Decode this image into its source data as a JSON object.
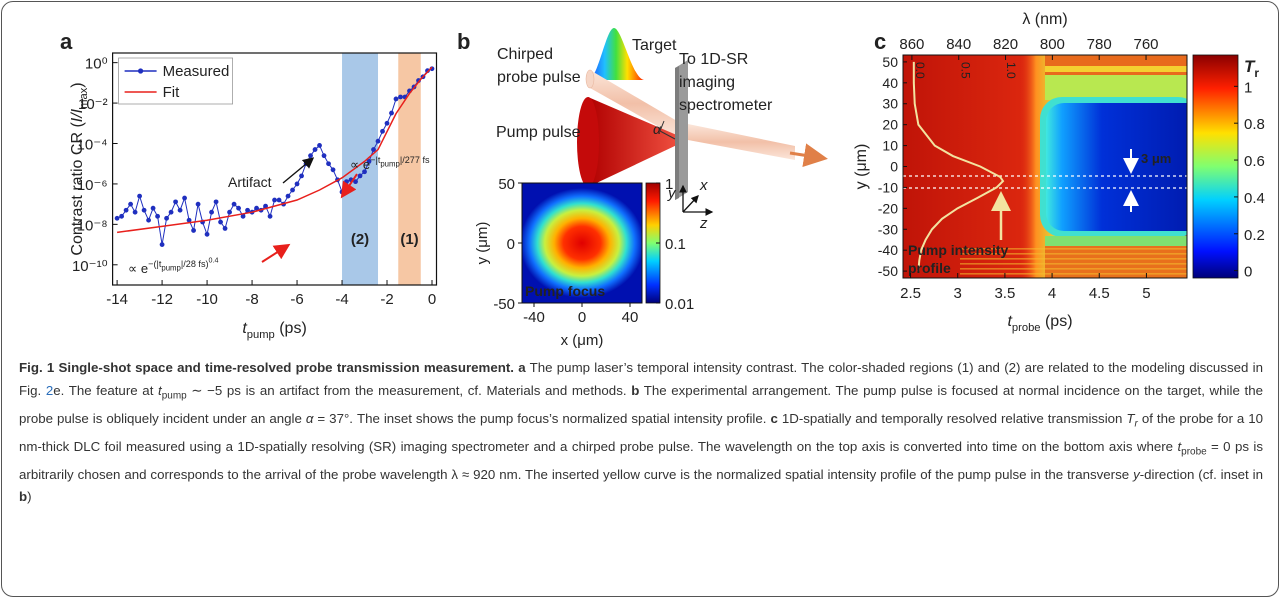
{
  "chart_data": [
    {
      "type": "line",
      "label": "a",
      "xlabel": [
        {
          "text": "t",
          "style": "i"
        },
        {
          "text": "pump",
          "style": "sub"
        },
        {
          "text": " (ps)"
        }
      ],
      "ylabel": [
        {
          "text": "Contrast ratio CR ("
        },
        {
          "text": "I/I",
          "style": "i"
        },
        {
          "text": "max",
          "style": "sub"
        },
        {
          "text": ")"
        }
      ],
      "xlim": [
        -14.2,
        0.2
      ],
      "xticks": [
        -14,
        -12,
        -10,
        -8,
        -6,
        -4,
        -2,
        0
      ],
      "ylim": [
        1e-11,
        3
      ],
      "yscale": "log",
      "yticks": [
        {
          "value": 1,
          "label": "10⁰"
        },
        {
          "value": 0.01,
          "label": "10⁻²"
        },
        {
          "value": 0.0001,
          "label": "10⁻⁴"
        },
        {
          "value": 1e-06,
          "label": "10⁻⁶"
        },
        {
          "value": 1e-08,
          "label": "10⁻⁸"
        },
        {
          "value": 1e-10,
          "label": "10⁻¹⁰"
        }
      ],
      "legend": "top-left",
      "series": [
        {
          "name": "Measured",
          "color": "#1f2fbf",
          "marker": "circle",
          "x": [
            -14,
            -13.8,
            -13.6,
            -13.4,
            -13.2,
            -13,
            -12.8,
            -12.6,
            -12.4,
            -12.2,
            -12,
            -11.8,
            -11.6,
            -11.4,
            -11.2,
            -11,
            -10.8,
            -10.6,
            -10.4,
            -10.2,
            -10,
            -9.8,
            -9.6,
            -9.4,
            -9.2,
            -9,
            -8.8,
            -8.6,
            -8.4,
            -8.2,
            -8,
            -7.8,
            -7.6,
            -7.4,
            -7.2,
            -7,
            -6.8,
            -6.6,
            -6.4,
            -6.2,
            -6,
            -5.8,
            -5.6,
            -5.4,
            -5.2,
            -5,
            -4.8,
            -4.6,
            -4.4,
            -4.2,
            -4,
            -3.8,
            -3.6,
            -3.4,
            -3.2,
            -3,
            -2.8,
            -2.6,
            -2.4,
            -2.2,
            -2,
            -1.8,
            -1.6,
            -1.4,
            -1.2,
            -1,
            -0.8,
            -0.6,
            -0.4,
            -0.2,
            0
          ],
          "values": [
            2e-08,
            2.5e-08,
            5e-08,
            1e-07,
            4e-08,
            2.5e-07,
            5e-08,
            1.6e-08,
            6.3e-08,
            2.5e-08,
            1e-09,
            2e-08,
            4e-08,
            1.3e-07,
            5e-08,
            2e-07,
            1.6e-08,
            5e-09,
            1e-07,
            1.3e-08,
            3.2e-09,
            4e-08,
            1.3e-07,
            1.3e-08,
            6.3e-09,
            4e-08,
            1e-07,
            6.3e-08,
            2.5e-08,
            5e-08,
            4e-08,
            6.3e-08,
            5e-08,
            8e-08,
            2.5e-08,
            1.6e-07,
            1.6e-07,
            1e-07,
            2.5e-07,
            5e-07,
            1e-06,
            2.5e-06,
            1e-05,
            2.5e-05,
            5e-05,
            8e-05,
            2.5e-05,
            1e-05,
            5e-06,
            1.6e-06,
            4e-07,
            1.3e-06,
            1.6e-06,
            1.3e-06,
            2.5e-06,
            4e-06,
            1.3e-05,
            5e-05,
            0.00013,
            0.0004,
            0.001,
            0.0032,
            0.016,
            0.02,
            0.02,
            0.04,
            0.063,
            0.13,
            0.2,
            0.4,
            0.5
          ]
        },
        {
          "name": "Fit",
          "color": "#e8201c",
          "x": [
            -14,
            -12,
            -10,
            -8,
            -6,
            -5,
            -4,
            -3,
            -2.4,
            -1.6,
            -1,
            -0.5,
            0
          ],
          "values": [
            4e-09,
            8e-09,
            1.6e-08,
            4e-08,
            1.6e-07,
            5e-07,
            2e-06,
            1.3e-05,
            5e-05,
            0.003,
            0.03,
            0.15,
            0.6
          ]
        }
      ],
      "regions": [
        {
          "label": "(2)",
          "from": -4,
          "to": -2.4,
          "color": "#a9c8e8",
          "label_color": "#2b6cc4"
        },
        {
          "label": "(1)",
          "from": -1.5,
          "to": -0.5,
          "color": "#f6c7a4",
          "label_color": "#f08a3c"
        }
      ],
      "annotations": {
        "artifact": "Artifact",
        "fast_fit": [
          {
            "text": "∝ e"
          },
          {
            "text": "−|t",
            "style": "sup"
          },
          {
            "text": "pump",
            "style": "supsub"
          },
          {
            "text": "|/277 fs",
            "style": "sup"
          }
        ],
        "slow_fit": [
          {
            "text": "∝ e"
          },
          {
            "text": "−(|t",
            "style": "sup"
          },
          {
            "text": "pump",
            "style": "supsub"
          },
          {
            "text": "|/28 fs)",
            "style": "sup"
          },
          {
            "text": "0.4",
            "style": "supsup"
          }
        ]
      }
    },
    {
      "type": "heatmap",
      "xlabel": "x (μm)",
      "ylabel": "y (μm)",
      "xlim": [
        -50,
        50
      ],
      "xticks": [
        -40,
        0,
        40
      ],
      "ylim": [
        -50,
        50
      ],
      "yticks": [
        -50,
        0,
        50
      ],
      "colorbar": {
        "scale": "log",
        "lim": [
          0.01,
          1
        ],
        "ticks": [
          1,
          0.1,
          0.01
        ]
      },
      "annotation": "Pump focus"
    },
    {
      "type": "heatmap",
      "label": "c",
      "xlabel": [
        {
          "text": "t",
          "style": "i"
        },
        {
          "text": "probe",
          "style": "sub"
        },
        {
          "text": " (ps)"
        }
      ],
      "ylabel": "y (μm)",
      "x2label": "λ (nm)",
      "xlim": [
        2.42,
        5.43
      ],
      "xticks": [
        2.5,
        3,
        3.5,
        4,
        4.5,
        5
      ],
      "x2lim": [
        863.8,
        742.5
      ],
      "x2ticks": [
        860,
        840,
        820,
        800,
        780,
        760
      ],
      "ylim": [
        -53.3,
        53.3
      ],
      "yticks": [
        50,
        40,
        30,
        20,
        10,
        0,
        -10,
        -20,
        -30,
        -40,
        -50
      ],
      "colorbar": {
        "scale": "linear",
        "label": [
          {
            "text": "T",
            "style": "bi"
          },
          {
            "text": "r",
            "style": "bsub"
          }
        ],
        "lim": [
          -0.04,
          1.17
        ],
        "ticks": [
          1,
          0.8,
          0.6,
          0.4,
          0.2,
          0
        ]
      },
      "profile": {
        "color": "#f3e3a0",
        "lim": [
          0,
          1
        ],
        "ticks": [
          {
            "value": 0,
            "label": "0.0"
          },
          0.5,
          {
            "value": 1,
            "label": "1.0"
          }
        ],
        "y": [
          50,
          40,
          30,
          20,
          10,
          5,
          0,
          -5,
          -7,
          -10,
          -15,
          -20,
          -25,
          -30,
          -35,
          -40,
          -45,
          -50
        ],
        "values": [
          0.02,
          0.02,
          0.03,
          0.07,
          0.25,
          0.45,
          0.75,
          0.97,
          1,
          0.93,
          0.72,
          0.5,
          0.33,
          0.22,
          0.15,
          0.1,
          0.08,
          0.07
        ]
      },
      "annotations": {
        "profile_label": [
          "Pump intensity",
          "profile"
        ],
        "spacing": "3 μm"
      }
    }
  ],
  "diagram": {
    "label": "b",
    "chirped_probe": [
      "Chirped",
      "probe pulse"
    ],
    "target": "Target",
    "spectrometer": [
      "To 1D-SR",
      "imaging",
      "spectrometer"
    ],
    "pump": "Pump pulse",
    "angle": "α",
    "axes": [
      "y",
      "x",
      "z"
    ]
  },
  "caption": [
    {
      "text": "Fig. 1 Single-shot space and time-resolved probe transmission measurement.",
      "style": "b"
    },
    {
      "text": " "
    },
    {
      "text": "a",
      "style": "b"
    },
    {
      "text": " The pump laser’s temporal intensity contrast. The color-shaded regions (1) and (2) are related to the modeling discussed in Fig. "
    },
    {
      "text": "2",
      "style": "link"
    },
    {
      "text": "e. The feature at "
    },
    {
      "text": "t",
      "style": "i"
    },
    {
      "text": "pump",
      "style": "sub"
    },
    {
      "text": " ∼ −5 ps is an artifact from the measurement, cf. Materials and methods. "
    },
    {
      "text": "b",
      "style": "b"
    },
    {
      "text": " The experimental arrangement. The pump pulse is focused at normal incidence on the target, while the probe pulse is obliquely incident under an angle "
    },
    {
      "text": "α",
      "style": "i"
    },
    {
      "text": " = 37°. The inset shows the pump focus’s normalized spatial intensity profile. "
    },
    {
      "text": "c",
      "style": "b"
    },
    {
      "text": " 1D-spatially and temporally resolved relative transmission "
    },
    {
      "text": "T",
      "style": "i"
    },
    {
      "text": "r",
      "style": "isub"
    },
    {
      "text": " of the probe for a 10 nm-thick DLC foil measured using a 1D-spatially resolving (SR) imaging spectrometer and a chirped probe pulse. The wavelength on the top axis is converted into time on the bottom axis where "
    },
    {
      "text": "t",
      "style": "i"
    },
    {
      "text": "probe",
      "style": "sub"
    },
    {
      "text": " = 0 ps is arbitrarily chosen and corresponds to the arrival of the probe wavelength λ ≈ 920 nm. The inserted yellow curve is the normalized spatial intensity profile of the pump pulse in the transverse "
    },
    {
      "text": "y",
      "style": "i"
    },
    {
      "text": "-direction (cf. inset in "
    },
    {
      "text": "b",
      "style": "b"
    },
    {
      "text": ")"
    }
  ]
}
